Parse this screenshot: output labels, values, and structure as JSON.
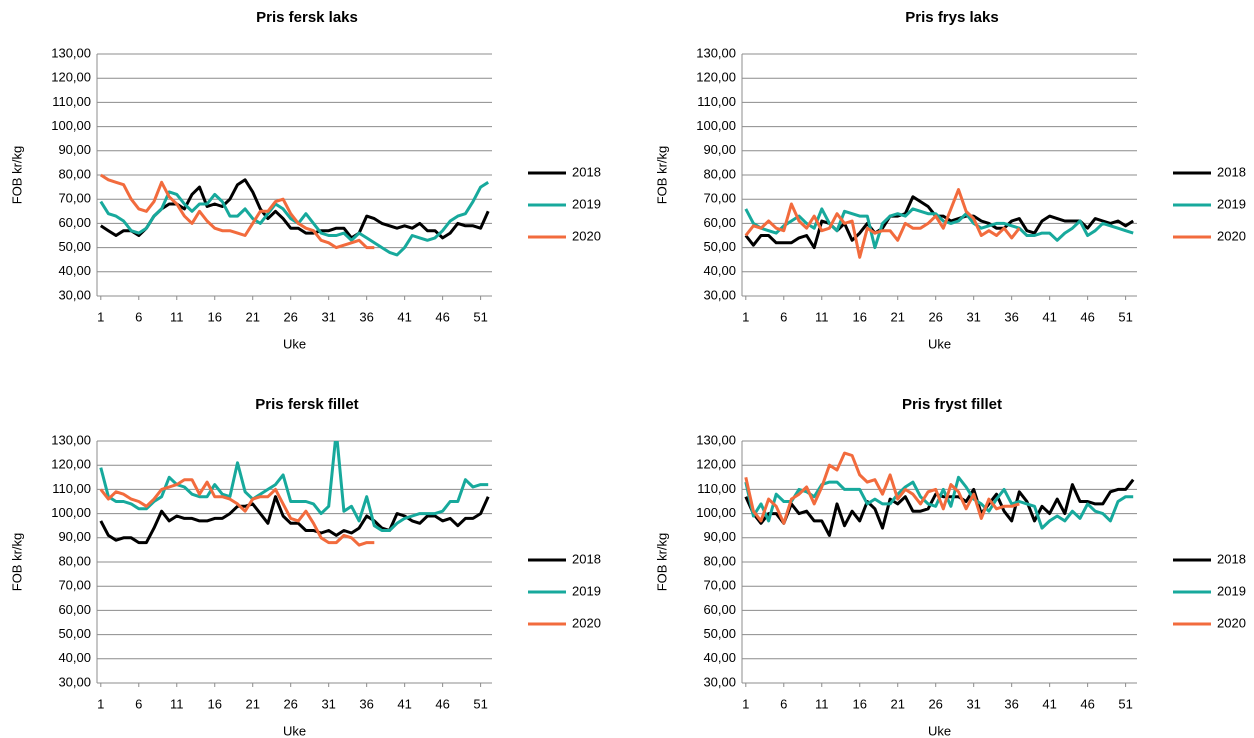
{
  "chart_data": [
    {
      "type": "line",
      "title": "Pris fersk laks",
      "x_label": "Uke",
      "y_label": "FOB kr/kg",
      "x": [
        1,
        2,
        3,
        4,
        5,
        6,
        7,
        8,
        9,
        10,
        11,
        12,
        13,
        14,
        15,
        16,
        17,
        18,
        19,
        20,
        21,
        22,
        23,
        24,
        25,
        26,
        27,
        28,
        29,
        30,
        31,
        32,
        33,
        34,
        35,
        36,
        37,
        38,
        39,
        40,
        41,
        42,
        43,
        44,
        45,
        46,
        47,
        48,
        49,
        50,
        51,
        52
      ],
      "xlim": [
        0.5,
        52.5
      ],
      "xticks": [
        1,
        6,
        11,
        16,
        21,
        26,
        31,
        36,
        41,
        46,
        51
      ],
      "ylim": [
        30,
        130
      ],
      "yticks": [
        {
          "value": 30,
          "label": "30,00"
        },
        {
          "value": 40,
          "label": "40,00"
        },
        {
          "value": 50,
          "label": "50,00"
        },
        {
          "value": 60,
          "label": "60,00"
        },
        {
          "value": 70,
          "label": "70,00"
        },
        {
          "value": 80,
          "label": "80,00"
        },
        {
          "value": 90,
          "label": "90,00"
        },
        {
          "value": 100,
          "label": "100,00"
        },
        {
          "value": 110,
          "label": "110,00"
        },
        {
          "value": 120,
          "label": "120,00"
        },
        {
          "value": 130,
          "label": "130,00"
        }
      ],
      "grid": true,
      "legend": "right",
      "series": [
        {
          "name": "2018",
          "color": "#000000",
          "values": [
            59,
            57,
            55,
            57,
            57,
            55,
            58,
            63,
            66,
            68,
            68,
            66,
            72,
            75,
            67,
            68,
            67,
            70,
            76,
            78,
            73,
            66,
            62,
            65,
            62,
            58,
            58,
            56,
            56,
            57,
            57,
            58,
            58,
            54,
            56,
            63,
            62,
            60,
            59,
            58,
            59,
            58,
            60,
            57,
            57,
            54,
            56,
            60,
            59,
            59,
            58,
            65
          ]
        },
        {
          "name": "2019",
          "color": "#17a99c",
          "values": [
            69,
            64,
            63,
            61,
            57,
            56,
            58,
            63,
            66,
            73,
            72,
            68,
            65,
            68,
            68,
            72,
            69,
            63,
            63,
            66,
            62,
            60,
            64,
            68,
            66,
            62,
            60,
            64,
            60,
            56,
            55,
            55,
            56,
            53,
            56,
            54,
            52,
            50,
            48,
            47,
            50,
            55,
            54,
            53,
            54,
            57,
            61,
            63,
            64,
            69,
            75,
            77
          ]
        },
        {
          "name": "2020",
          "color": "#f26b3d",
          "values": [
            80,
            78,
            77,
            76,
            70,
            66,
            65,
            69,
            77,
            71,
            68,
            63,
            60,
            65,
            61,
            58,
            57,
            57,
            56,
            55,
            60,
            65,
            65,
            69,
            70,
            64,
            60,
            58,
            57,
            53,
            52,
            50,
            51,
            52,
            53,
            50,
            50,
            null,
            null,
            null,
            null,
            null,
            null,
            null,
            null,
            null,
            null,
            null,
            null,
            null,
            null,
            null
          ]
        }
      ]
    },
    {
      "type": "line",
      "title": "Pris frys laks",
      "x_label": "Uke",
      "y_label": "FOB kr/kg",
      "x": [
        1,
        2,
        3,
        4,
        5,
        6,
        7,
        8,
        9,
        10,
        11,
        12,
        13,
        14,
        15,
        16,
        17,
        18,
        19,
        20,
        21,
        22,
        23,
        24,
        25,
        26,
        27,
        28,
        29,
        30,
        31,
        32,
        33,
        34,
        35,
        36,
        37,
        38,
        39,
        40,
        41,
        42,
        43,
        44,
        45,
        46,
        47,
        48,
        49,
        50,
        51,
        52
      ],
      "xlim": [
        0.5,
        52.5
      ],
      "xticks": [
        1,
        6,
        11,
        16,
        21,
        26,
        31,
        36,
        41,
        46,
        51
      ],
      "ylim": [
        30,
        130
      ],
      "yticks": [
        {
          "value": 30,
          "label": "30,00"
        },
        {
          "value": 40,
          "label": "40,00"
        },
        {
          "value": 50,
          "label": "50,00"
        },
        {
          "value": 60,
          "label": "60,00"
        },
        {
          "value": 70,
          "label": "70,00"
        },
        {
          "value": 80,
          "label": "80,00"
        },
        {
          "value": 90,
          "label": "90,00"
        },
        {
          "value": 100,
          "label": "100,00"
        },
        {
          "value": 110,
          "label": "110,00"
        },
        {
          "value": 120,
          "label": "120,00"
        },
        {
          "value": 130,
          "label": "130,00"
        }
      ],
      "grid": true,
      "legend": "right",
      "series": [
        {
          "name": "2018",
          "color": "#000000",
          "values": [
            55,
            51,
            55,
            55,
            52,
            52,
            52,
            54,
            55,
            50,
            61,
            60,
            57,
            60,
            53,
            56,
            60,
            56,
            58,
            63,
            63,
            64,
            71,
            69,
            67,
            63,
            63,
            61,
            62,
            63,
            63,
            61,
            60,
            58,
            58,
            61,
            62,
            57,
            56,
            61,
            63,
            62,
            61,
            61,
            61,
            58,
            62,
            61,
            60,
            61,
            59,
            61
          ]
        },
        {
          "name": "2019",
          "color": "#17a99c",
          "values": [
            66,
            60,
            58,
            57,
            56,
            59,
            61,
            63,
            60,
            58,
            66,
            60,
            57,
            65,
            64,
            63,
            63,
            50,
            60,
            63,
            64,
            63,
            66,
            65,
            64,
            64,
            61,
            60,
            61,
            64,
            60,
            58,
            59,
            60,
            60,
            59,
            58,
            55,
            55,
            56,
            56,
            53,
            56,
            58,
            61,
            55,
            57,
            60,
            59,
            58,
            57,
            56
          ]
        },
        {
          "name": "2020",
          "color": "#f26b3d",
          "values": [
            55,
            59,
            58,
            61,
            58,
            57,
            68,
            61,
            58,
            63,
            57,
            58,
            64,
            60,
            61,
            46,
            58,
            56,
            57,
            57,
            53,
            60,
            58,
            58,
            60,
            63,
            58,
            66,
            74,
            65,
            62,
            55,
            57,
            55,
            58,
            54,
            58,
            null,
            null,
            null,
            null,
            null,
            null,
            null,
            null,
            null,
            null,
            null,
            null,
            null,
            null,
            null
          ]
        }
      ]
    },
    {
      "type": "line",
      "title": "Pris fersk fillet",
      "x_label": "Uke",
      "y_label": "FOB kr/kg",
      "x": [
        1,
        2,
        3,
        4,
        5,
        6,
        7,
        8,
        9,
        10,
        11,
        12,
        13,
        14,
        15,
        16,
        17,
        18,
        19,
        20,
        21,
        22,
        23,
        24,
        25,
        26,
        27,
        28,
        29,
        30,
        31,
        32,
        33,
        34,
        35,
        36,
        37,
        38,
        39,
        40,
        41,
        42,
        43,
        44,
        45,
        46,
        47,
        48,
        49,
        50,
        51,
        52
      ],
      "xlim": [
        0.5,
        52.5
      ],
      "xticks": [
        1,
        6,
        11,
        16,
        21,
        26,
        31,
        36,
        41,
        46,
        51
      ],
      "ylim": [
        30,
        130
      ],
      "yticks": [
        {
          "value": 30,
          "label": "30,00"
        },
        {
          "value": 40,
          "label": "40,00"
        },
        {
          "value": 50,
          "label": "50,00"
        },
        {
          "value": 60,
          "label": "60,00"
        },
        {
          "value": 70,
          "label": "70,00"
        },
        {
          "value": 80,
          "label": "80,00"
        },
        {
          "value": 90,
          "label": "90,00"
        },
        {
          "value": 100,
          "label": "100,00"
        },
        {
          "value": 110,
          "label": "110,00"
        },
        {
          "value": 120,
          "label": "120,00"
        },
        {
          "value": 130,
          "label": "130,00"
        }
      ],
      "grid": true,
      "legend": "right",
      "series": [
        {
          "name": "2018",
          "color": "#000000",
          "values": [
            97,
            91,
            89,
            90,
            90,
            88,
            88,
            94,
            101,
            97,
            99,
            98,
            98,
            97,
            97,
            98,
            98,
            100,
            103,
            103,
            104,
            100,
            96,
            107,
            99,
            96,
            96,
            93,
            93,
            92,
            93,
            91,
            93,
            92,
            94,
            99,
            97,
            94,
            93,
            100,
            99,
            97,
            96,
            99,
            99,
            97,
            98,
            95,
            98,
            98,
            100,
            107
          ]
        },
        {
          "name": "2019",
          "color": "#17a99c",
          "values": [
            119,
            107,
            105,
            105,
            104,
            102,
            102,
            105,
            107,
            115,
            112,
            111,
            108,
            107,
            107,
            112,
            108,
            107,
            121,
            109,
            106,
            108,
            110,
            112,
            116,
            105,
            105,
            105,
            104,
            100,
            103,
            134,
            101,
            103,
            97,
            107,
            95,
            93,
            93,
            96,
            98,
            99,
            100,
            100,
            100,
            101,
            105,
            105,
            114,
            111,
            112,
            112
          ]
        },
        {
          "name": "2020",
          "color": "#f26b3d",
          "values": [
            110,
            106,
            109,
            108,
            106,
            105,
            103,
            106,
            110,
            111,
            112,
            114,
            114,
            108,
            113,
            107,
            107,
            106,
            104,
            101,
            106,
            107,
            107,
            110,
            104,
            98,
            97,
            101,
            96,
            90,
            88,
            88,
            91,
            90,
            87,
            88,
            88,
            null,
            null,
            null,
            null,
            null,
            null,
            null,
            null,
            null,
            null,
            null,
            null,
            null,
            null,
            null
          ]
        }
      ]
    },
    {
      "type": "line",
      "title": "Pris fryst fillet",
      "x_label": "Uke",
      "y_label": "FOB kr/kg",
      "x": [
        1,
        2,
        3,
        4,
        5,
        6,
        7,
        8,
        9,
        10,
        11,
        12,
        13,
        14,
        15,
        16,
        17,
        18,
        19,
        20,
        21,
        22,
        23,
        24,
        25,
        26,
        27,
        28,
        29,
        30,
        31,
        32,
        33,
        34,
        35,
        36,
        37,
        38,
        39,
        40,
        41,
        42,
        43,
        44,
        45,
        46,
        47,
        48,
        49,
        50,
        51,
        52
      ],
      "xlim": [
        0.5,
        52.5
      ],
      "xticks": [
        1,
        6,
        11,
        16,
        21,
        26,
        31,
        36,
        41,
        46,
        51
      ],
      "ylim": [
        30,
        130
      ],
      "yticks": [
        {
          "value": 30,
          "label": "30,00"
        },
        {
          "value": 40,
          "label": "40,00"
        },
        {
          "value": 50,
          "label": "50,00"
        },
        {
          "value": 60,
          "label": "60,00"
        },
        {
          "value": 70,
          "label": "70,00"
        },
        {
          "value": 80,
          "label": "80,00"
        },
        {
          "value": 90,
          "label": "90,00"
        },
        {
          "value": 100,
          "label": "100,00"
        },
        {
          "value": 110,
          "label": "110,00"
        },
        {
          "value": 120,
          "label": "120,00"
        },
        {
          "value": 130,
          "label": "130,00"
        }
      ],
      "grid": true,
      "legend": "right",
      "series": [
        {
          "name": "2018",
          "color": "#000000",
          "values": [
            107,
            100,
            96,
            100,
            100,
            96,
            104,
            100,
            101,
            97,
            97,
            91,
            104,
            95,
            101,
            97,
            105,
            102,
            94,
            106,
            104,
            107,
            101,
            101,
            102,
            108,
            107,
            107,
            107,
            105,
            110,
            100,
            104,
            108,
            101,
            97,
            109,
            105,
            97,
            103,
            100,
            106,
            100,
            112,
            105,
            105,
            104,
            104,
            109,
            110,
            110,
            114
          ]
        },
        {
          "name": "2019",
          "color": "#17a99c",
          "values": [
            113,
            99,
            104,
            97,
            108,
            105,
            105,
            110,
            109,
            107,
            112,
            113,
            113,
            110,
            110,
            110,
            104,
            106,
            104,
            104,
            108,
            111,
            113,
            107,
            104,
            103,
            110,
            103,
            115,
            111,
            106,
            104,
            101,
            106,
            110,
            104,
            105,
            104,
            103,
            94,
            97,
            99,
            97,
            101,
            98,
            104,
            101,
            100,
            97,
            105,
            107,
            107
          ]
        },
        {
          "name": "2020",
          "color": "#f26b3d",
          "values": [
            115,
            101,
            97,
            106,
            103,
            96,
            106,
            108,
            111,
            104,
            111,
            120,
            118,
            125,
            124,
            116,
            113,
            114,
            108,
            116,
            106,
            110,
            108,
            104,
            109,
            110,
            102,
            112,
            109,
            102,
            108,
            98,
            106,
            102,
            103,
            103,
            104,
            null,
            null,
            null,
            null,
            null,
            null,
            null,
            null,
            null,
            null,
            null,
            null,
            null,
            null,
            null
          ]
        }
      ]
    }
  ]
}
